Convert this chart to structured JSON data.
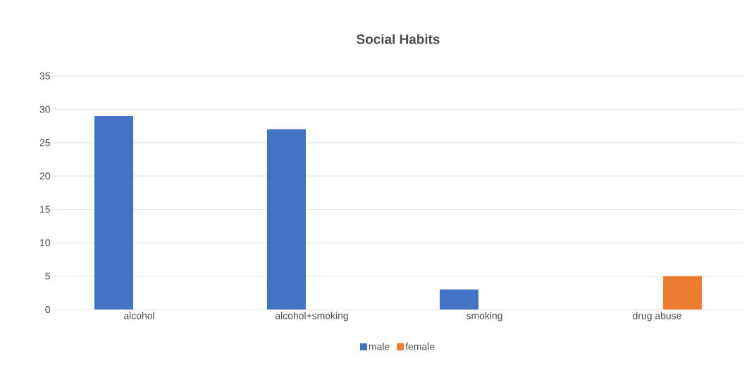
{
  "chart_data": {
    "type": "bar",
    "title": "Social  Habits",
    "categories": [
      "alcohol",
      "alcohol+smoking",
      "smoking",
      "drug abuse"
    ],
    "series": [
      {
        "name": "male",
        "color": "#4472c4",
        "values": [
          29,
          27,
          3,
          null
        ]
      },
      {
        "name": "female",
        "color": "#ed7d31",
        "values": [
          null,
          null,
          null,
          5
        ]
      }
    ],
    "ylim": [
      0,
      35
    ],
    "yticks": [
      0,
      5,
      10,
      15,
      20,
      25,
      30,
      35
    ],
    "grid": "y",
    "legend": "bottom"
  }
}
